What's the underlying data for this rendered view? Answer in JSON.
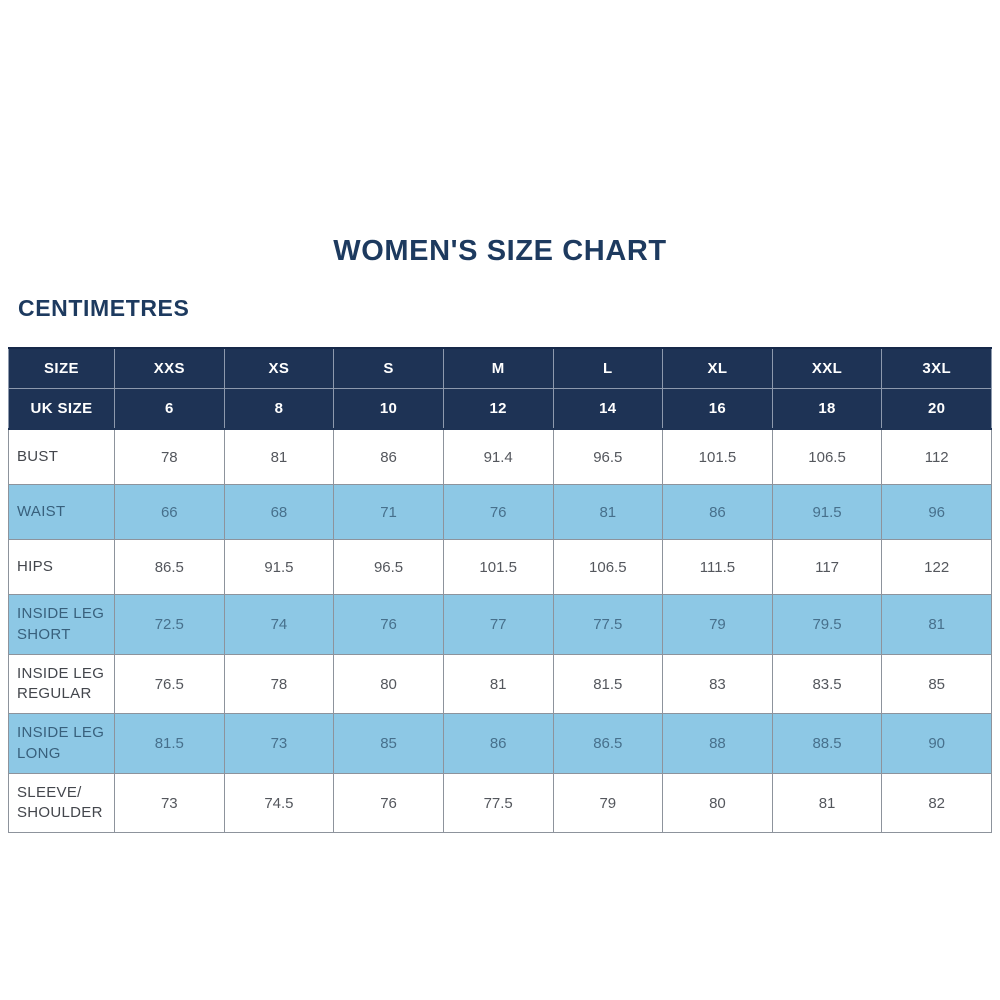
{
  "page": {
    "title": "WOMEN'S SIZE CHART",
    "subtitle": "CENTIMETRES"
  },
  "colors": {
    "navy_header": "#1e3355",
    "light_blue_row": "#8dc8e5",
    "title_navy": "#1d3a5f",
    "white_row_text": "#54575d",
    "blue_row_text": "#47708c",
    "border_gray": "#8d939c"
  },
  "chart_data": {
    "type": "table",
    "title": "WOMEN'S SIZE CHART",
    "units_label": "CENTIMETRES",
    "header_rows": [
      {
        "label": "SIZE",
        "values": [
          "XXS",
          "XS",
          "S",
          "M",
          "L",
          "XL",
          "XXL",
          "3XL"
        ]
      },
      {
        "label": "UK SIZE",
        "values": [
          "6",
          "8",
          "10",
          "12",
          "14",
          "16",
          "18",
          "20"
        ]
      }
    ],
    "rows": [
      {
        "label": "BUST",
        "values": [
          "78",
          "81",
          "86",
          "91.4",
          "96.5",
          "101.5",
          "106.5",
          "112"
        ]
      },
      {
        "label": "WAIST",
        "values": [
          "66",
          "68",
          "71",
          "76",
          "81",
          "86",
          "91.5",
          "96"
        ]
      },
      {
        "label": "HIPS",
        "values": [
          "86.5",
          "91.5",
          "96.5",
          "101.5",
          "106.5",
          "111.5",
          "117",
          "122"
        ]
      },
      {
        "label": "INSIDE LEG SHORT",
        "values": [
          "72.5",
          "74",
          "76",
          "77",
          "77.5",
          "79",
          "79.5",
          "81"
        ]
      },
      {
        "label": "INSIDE LEG REGULAR",
        "values": [
          "76.5",
          "78",
          "80",
          "81",
          "81.5",
          "83",
          "83.5",
          "85"
        ]
      },
      {
        "label": "INSIDE LEG LONG",
        "values": [
          "81.5",
          "73",
          "85",
          "86",
          "86.5",
          "88",
          "88.5",
          "90"
        ]
      },
      {
        "label": "SLEEVE/ SHOULDER",
        "values": [
          "73",
          "74.5",
          "76",
          "77.5",
          "79",
          "80",
          "81",
          "82"
        ]
      }
    ],
    "layout": {
      "row_shading": "alternating white and light blue body rows, starting white",
      "grid": "all cell borders visible",
      "legend": "none",
      "label_column_align": "left",
      "value_align": "center"
    }
  }
}
